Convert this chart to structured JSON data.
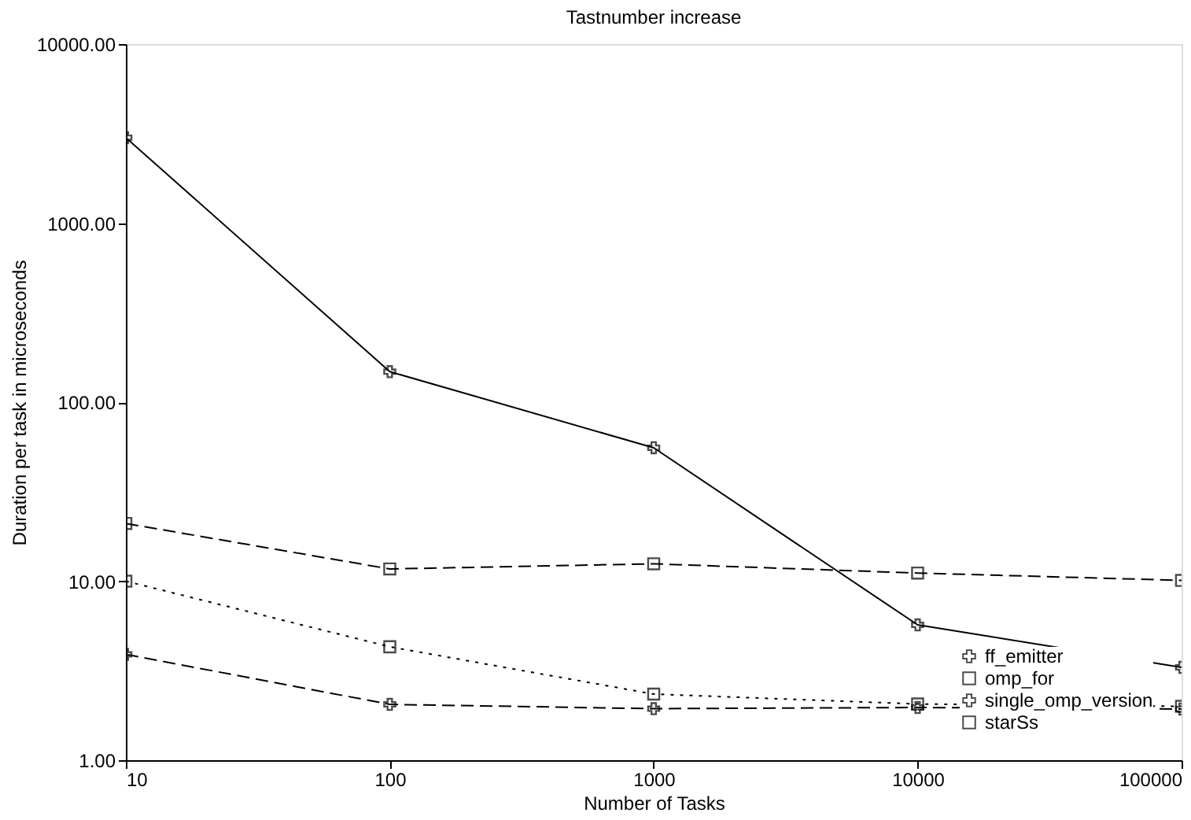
{
  "chart_data": {
    "type": "line",
    "title": "Tastnumber increase",
    "xlabel": "Number of Tasks",
    "ylabel": "Duration per task in microseconds",
    "x": [
      10,
      100,
      1000,
      10000,
      100000
    ],
    "series": [
      {
        "name": "ff_emitter",
        "color": "#000000",
        "line_style": "solid",
        "marker": "cross",
        "values": [
          3000,
          148,
          55.6,
          5.7,
          3.3
        ]
      },
      {
        "name": "omp_for",
        "color": "#000000",
        "line_style": "dotted",
        "marker": "square",
        "values": [
          10,
          4.3,
          2.34,
          2.06,
          2.0
        ]
      },
      {
        "name": "single_omp_version",
        "color": "#000000",
        "line_style": "dashed",
        "marker": "cross",
        "values": [
          3.9,
          2.05,
          1.94,
          1.97,
          1.93
        ]
      },
      {
        "name": "starSs",
        "color": "#000000",
        "line_style": "dashed",
        "marker": "square",
        "values": [
          21,
          11.7,
          12.5,
          11.1,
          10.1
        ]
      }
    ],
    "log": "xy",
    "xlim": [
      10,
      100000
    ],
    "xticks": [
      10,
      100,
      1000,
      10000,
      100000
    ],
    "ylim": [
      1,
      10000
    ],
    "yticks": [
      {
        "value": 1,
        "label": "1.00"
      },
      {
        "value": 10,
        "label": "10.00"
      },
      {
        "value": 100,
        "label": "100.00"
      },
      {
        "value": 1000,
        "label": "1000.00"
      },
      {
        "value": 10000,
        "label": "10000.00"
      }
    ],
    "grid": false,
    "legend": "bottom right"
  }
}
